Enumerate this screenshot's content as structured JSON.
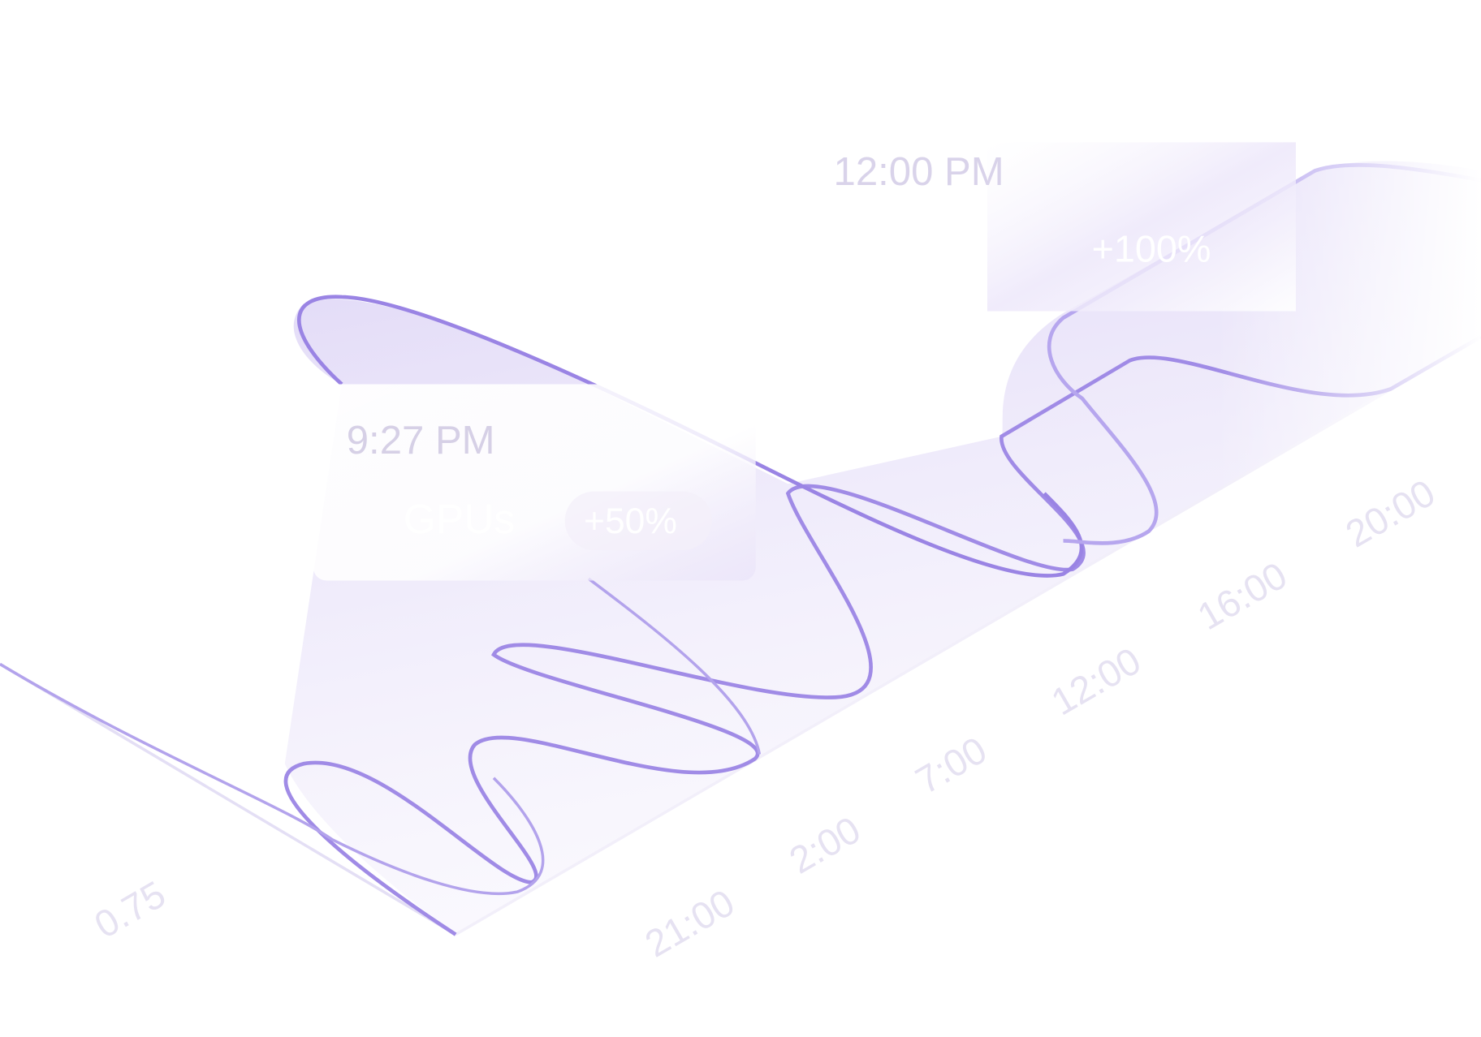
{
  "tooltips": [
    {
      "time": "12:00 PM",
      "change": "+100%"
    },
    {
      "time": "9:27 PM",
      "label": "GPUs",
      "change": "+50%"
    }
  ],
  "axis": {
    "value_label": "0.75",
    "time_labels": [
      "21:00",
      "2:00",
      "7:00",
      "12:00",
      "16:00",
      "20:00"
    ]
  }
}
